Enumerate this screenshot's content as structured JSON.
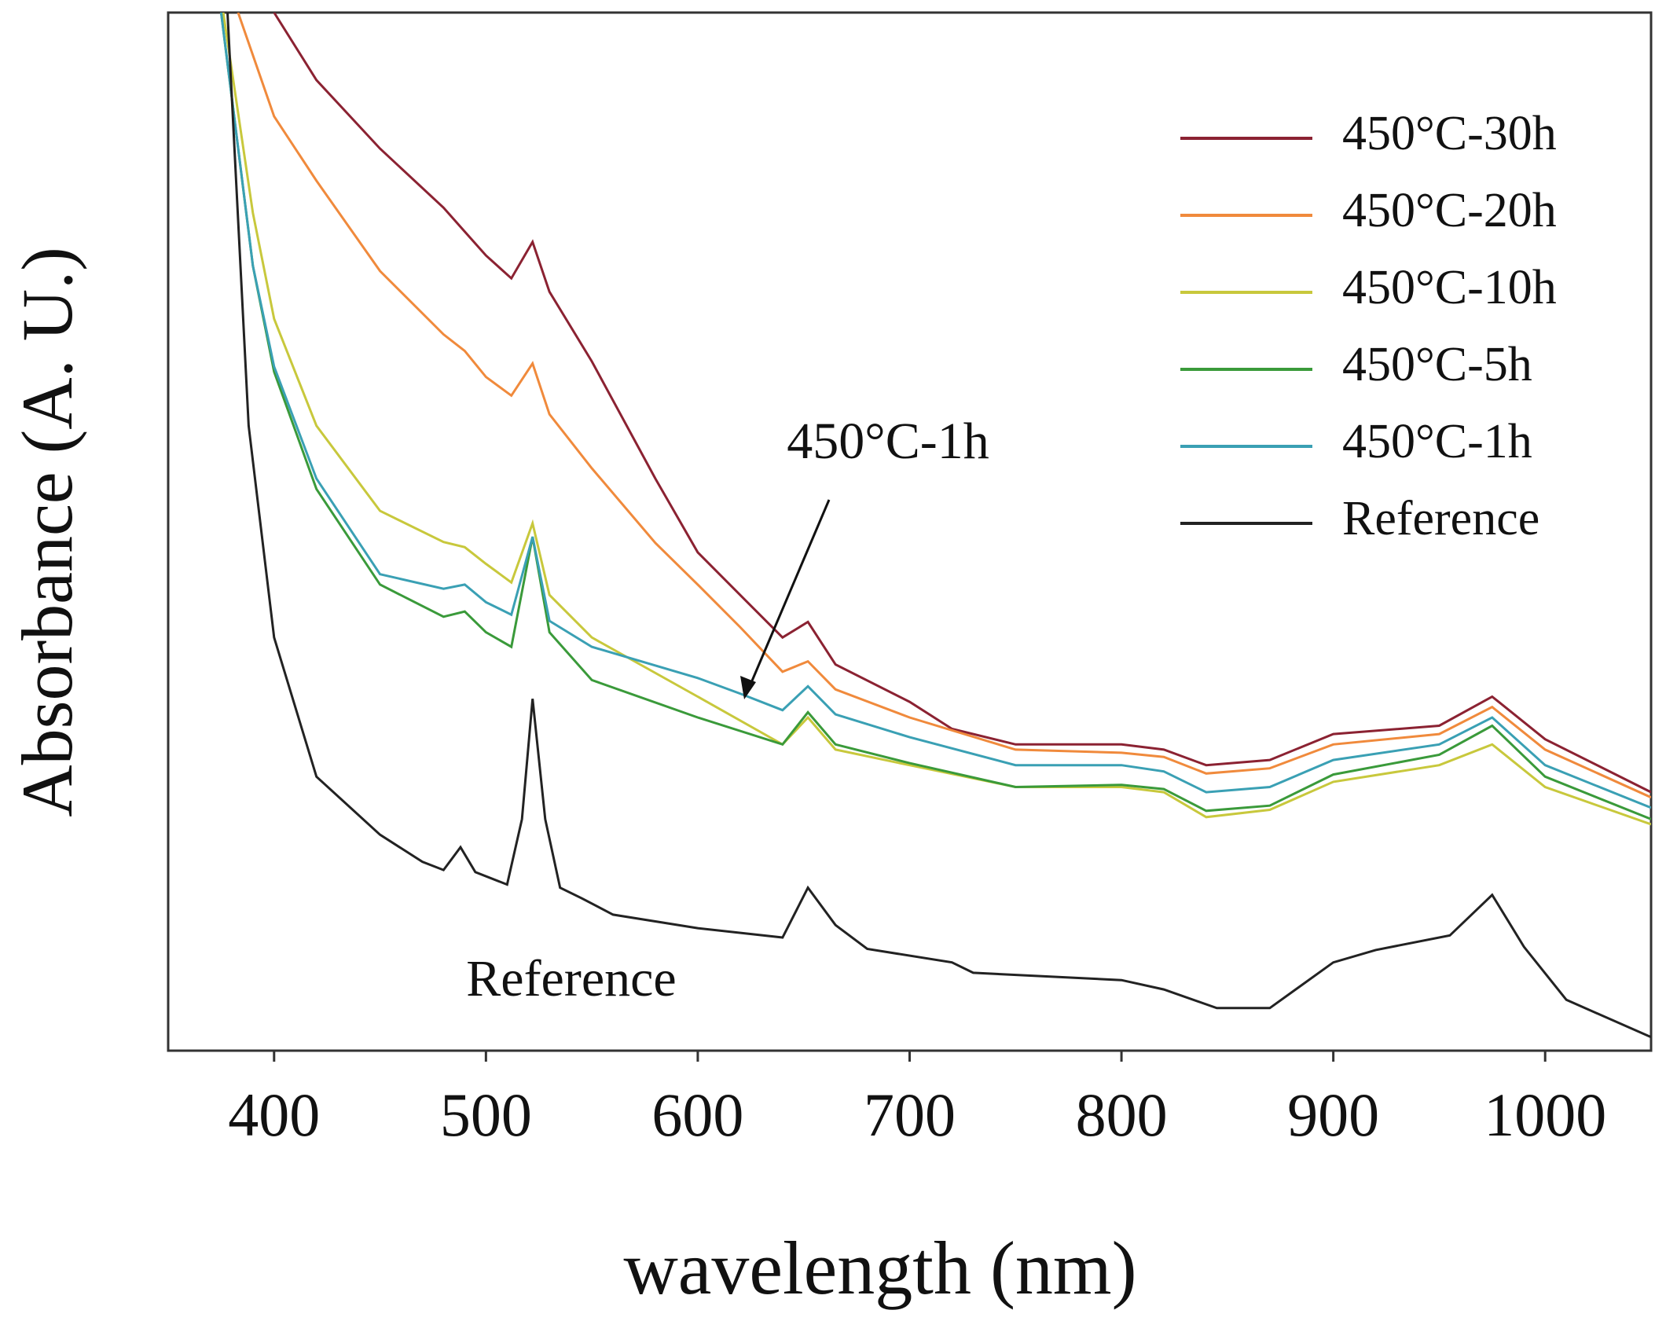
{
  "chart_data": {
    "type": "line",
    "xlabel": "wavelength (nm)",
    "ylabel": "Absorbance (A. U.)",
    "xlim": [
      350,
      1050
    ],
    "ylim": [
      0,
      100
    ],
    "xticks": [
      400,
      500,
      600,
      700,
      800,
      900,
      1000
    ],
    "legend": "upper right",
    "annotations": [
      {
        "text": "450°C-1h",
        "arrow": true
      },
      {
        "text": "Reference",
        "arrow": false
      }
    ],
    "series": [
      {
        "name": "450°C-30h",
        "color": "#8b2232",
        "x": [
          400,
          420,
          450,
          480,
          490,
          500,
          512,
          522,
          530,
          550,
          580,
          600,
          620,
          640,
          652,
          665,
          700,
          720,
          750,
          800,
          820,
          840,
          870,
          900,
          950,
          975,
          1000,
          1050
        ],
        "values": [
          100,
          93.5,
          86.9,
          81.2,
          78.9,
          76.6,
          74.4,
          77.9,
          73.1,
          66.4,
          55.1,
          48.0,
          43.9,
          39.8,
          41.3,
          37.2,
          33.6,
          31.0,
          29.5,
          29.5,
          29.0,
          27.5,
          28.0,
          30.5,
          31.3,
          34.1,
          30.0,
          24.9
        ]
      },
      {
        "name": "450°C-20h",
        "color": "#f08a3c",
        "x": [
          383,
          400,
          420,
          450,
          480,
          490,
          500,
          512,
          522,
          530,
          550,
          580,
          600,
          620,
          640,
          652,
          665,
          700,
          750,
          800,
          820,
          840,
          870,
          900,
          950,
          975,
          1000,
          1050
        ],
        "values": [
          100,
          90,
          83.8,
          75.1,
          69.0,
          67.4,
          64.9,
          63.1,
          66.2,
          61.3,
          56.1,
          48.9,
          44.9,
          40.8,
          36.5,
          37.5,
          34.8,
          32.1,
          29.0,
          28.7,
          28.3,
          26.7,
          27.2,
          29.5,
          30.5,
          33.1,
          29.0,
          24.4
        ]
      },
      {
        "name": "450°C-10h",
        "color": "#c8c83c",
        "x": [
          376,
          390,
          400,
          420,
          450,
          480,
          490,
          500,
          512,
          522,
          530,
          550,
          600,
          640,
          652,
          665,
          700,
          750,
          800,
          820,
          840,
          870,
          900,
          950,
          975,
          1000,
          1050
        ],
        "values": [
          100,
          80.7,
          70.5,
          60.2,
          52.0,
          49.0,
          48.5,
          46.9,
          45.1,
          50.8,
          43.9,
          39.8,
          34.1,
          29.5,
          32.1,
          29.0,
          27.5,
          25.4,
          25.4,
          24.9,
          22.5,
          23.2,
          25.9,
          27.5,
          29.5,
          25.4,
          21.8
        ]
      },
      {
        "name": "450°C-5h",
        "color": "#3a9a3a",
        "x": [
          375,
          390,
          400,
          420,
          450,
          480,
          490,
          500,
          512,
          522,
          530,
          550,
          600,
          640,
          652,
          665,
          700,
          750,
          800,
          820,
          840,
          870,
          900,
          950,
          975,
          1000,
          1050
        ],
        "values": [
          100,
          75.6,
          65.4,
          54.1,
          44.9,
          41.8,
          42.3,
          40.3,
          38.9,
          49.5,
          40.3,
          35.7,
          32.1,
          29.5,
          32.6,
          29.5,
          27.7,
          25.4,
          25.6,
          25.2,
          23.1,
          23.6,
          26.6,
          28.5,
          31.3,
          26.4,
          22.3
        ]
      },
      {
        "name": "450°C-1h",
        "color": "#3aa0b4",
        "x": [
          375,
          390,
          400,
          420,
          450,
          480,
          490,
          500,
          512,
          522,
          530,
          550,
          600,
          620,
          640,
          652,
          665,
          700,
          750,
          800,
          820,
          840,
          870,
          900,
          950,
          975,
          1000,
          1050
        ],
        "values": [
          100,
          75.6,
          65.9,
          55.1,
          45.9,
          44.5,
          44.9,
          43.2,
          42.0,
          49.5,
          41.4,
          38.9,
          35.9,
          34.4,
          32.8,
          35.1,
          32.4,
          30.2,
          27.5,
          27.5,
          26.9,
          24.9,
          25.4,
          28.0,
          29.5,
          32.1,
          27.5,
          23.4
        ]
      },
      {
        "name": "Reference",
        "color": "#222222",
        "x": [
          378,
          388,
          400,
          420,
          450,
          470,
          480,
          488,
          495,
          510,
          517,
          522,
          528,
          535,
          545,
          560,
          600,
          640,
          652,
          665,
          680,
          720,
          730,
          800,
          820,
          845,
          870,
          900,
          920,
          955,
          975,
          990,
          1010,
          1050
        ],
        "values": [
          100,
          60.2,
          39.8,
          26.4,
          20.8,
          18.2,
          17.4,
          19.6,
          17.2,
          16.0,
          22.3,
          33.9,
          22.3,
          15.7,
          14.7,
          13.1,
          11.8,
          10.9,
          15.7,
          12.1,
          9.8,
          8.5,
          7.5,
          6.8,
          5.9,
          4.1,
          4.1,
          8.5,
          9.7,
          11.1,
          15.0,
          10.0,
          4.9,
          1.3
        ]
      }
    ]
  }
}
